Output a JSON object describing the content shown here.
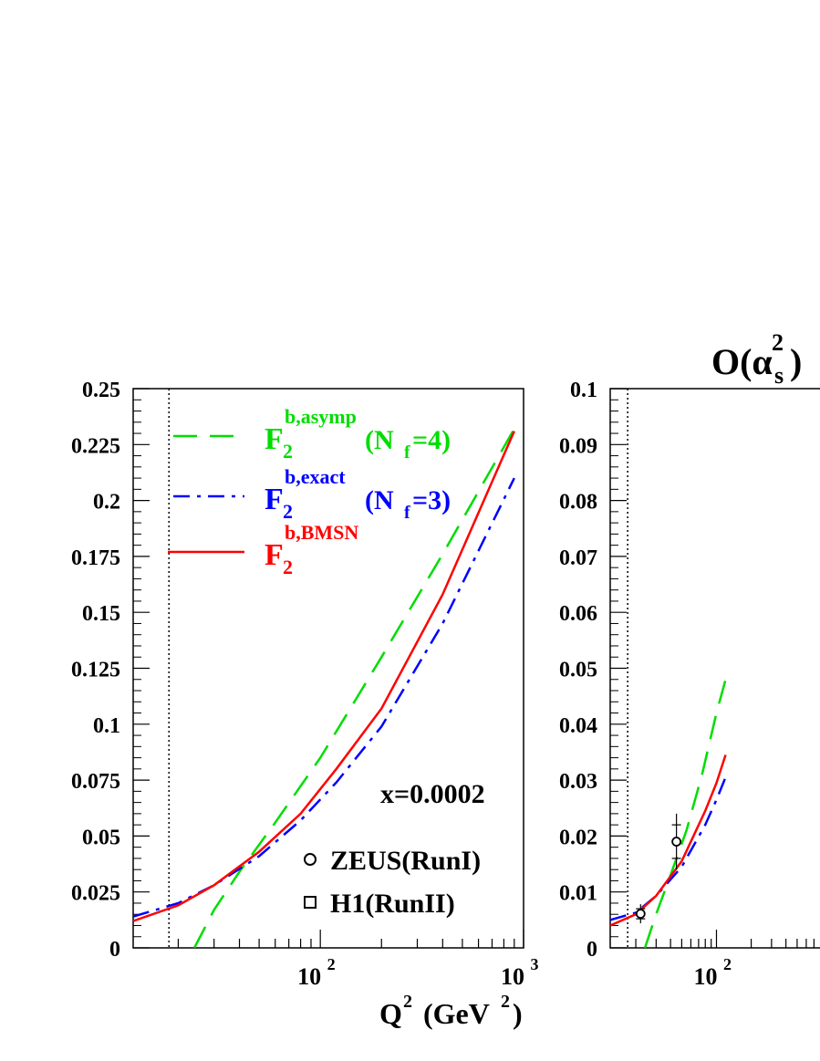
{
  "chart_data": [
    {
      "type": "line",
      "panel": "left",
      "xlabel": "Q",
      "xlabel_sup": "2",
      "xlabel_unit": "(GeV",
      "xlabel_unit_sup": "2",
      "xlabel_unit_close": ")",
      "xscale": "log",
      "xlim": [
        12,
        1000
      ],
      "ylim": [
        0,
        0.25
      ],
      "yticks": [
        "0",
        "0.025",
        "0.05",
        "0.075",
        "0.1",
        "0.125",
        "0.15",
        "0.175",
        "0.2",
        "0.225",
        "0.25"
      ],
      "xticks": [
        {
          "value": 100,
          "base": "10",
          "exp": "2"
        },
        {
          "value": 1000,
          "base": "10",
          "exp": "3"
        }
      ],
      "threshold_line_x": 18,
      "annotation": "x=0.0002",
      "legend": {
        "placement": "top-left",
        "entries": [
          {
            "key": "asymp",
            "base": "F",
            "sub": "2",
            "sup": "b,asymp",
            "tail": "(N",
            "tail_sub": "f",
            "tail_end": "=4)",
            "color": "#00dd00",
            "style": "dashed"
          },
          {
            "key": "exact",
            "base": "F",
            "sub": "2",
            "sup": "b,exact",
            "tail": "(N",
            "tail_sub": "f",
            "tail_end": "=3)",
            "color": "#0000ff",
            "style": "dashdot"
          },
          {
            "key": "bmsn",
            "base": "F",
            "sub": "2",
            "sup": "b,BMSN",
            "tail": "",
            "tail_sub": "",
            "tail_end": "",
            "color": "#ff0000",
            "style": "solid"
          }
        ]
      },
      "data_legend": [
        {
          "marker": "circle",
          "label": "ZEUS(RunI)"
        },
        {
          "marker": "square",
          "label": "H1(RunII)"
        }
      ],
      "series": [
        {
          "key": "asymp",
          "x": [
            24,
            30,
            40,
            60,
            100,
            200,
            400,
            900
          ],
          "y": [
            0.0,
            0.017,
            0.034,
            0.056,
            0.085,
            0.13,
            0.176,
            0.232
          ]
        },
        {
          "key": "exact",
          "x": [
            12,
            20,
            30,
            50,
            80,
            120,
            200,
            400,
            900
          ],
          "y": [
            0.014,
            0.02,
            0.028,
            0.041,
            0.057,
            0.074,
            0.099,
            0.145,
            0.21
          ]
        },
        {
          "key": "bmsn",
          "x": [
            12,
            20,
            30,
            50,
            80,
            120,
            200,
            400,
            900
          ],
          "y": [
            0.012,
            0.019,
            0.028,
            0.043,
            0.06,
            0.08,
            0.107,
            0.158,
            0.231
          ]
        }
      ]
    },
    {
      "type": "line",
      "panel": "right",
      "title_base": "O(α",
      "title_sub": "s",
      "title_sup": "2",
      "title_end": ")",
      "xscale": "log",
      "xlim": [
        12,
        1000
      ],
      "ylim": [
        0,
        0.1
      ],
      "yticks": [
        "0",
        "0.01",
        "0.02",
        "0.03",
        "0.04",
        "0.05",
        "0.06",
        "0.07",
        "0.08",
        "0.09",
        "0.1"
      ],
      "xticks": [
        {
          "value": 100,
          "base": "10",
          "exp": "2"
        }
      ],
      "threshold_line_x": 17,
      "series": [
        {
          "key": "asymp",
          "x": [
            24,
            30,
            40,
            55,
            75,
            100,
            120
          ],
          "y": [
            0.0,
            0.006,
            0.013,
            0.021,
            0.031,
            0.042,
            0.048
          ]
        },
        {
          "key": "exact",
          "x": [
            12,
            20,
            30,
            50,
            80,
            100,
            120
          ],
          "y": [
            0.005,
            0.0063,
            0.0093,
            0.0145,
            0.022,
            0.0265,
            0.0305
          ]
        },
        {
          "key": "bmsn",
          "x": [
            12,
            20,
            30,
            50,
            80,
            100,
            120
          ],
          "y": [
            0.004,
            0.006,
            0.0093,
            0.0155,
            0.0245,
            0.0295,
            0.0345
          ]
        }
      ],
      "points": [
        {
          "label": "ZEUS(RunI)",
          "marker": "circle",
          "x": 22,
          "y": 0.0061,
          "err_stat": 0.0009,
          "err_tot": 0.0017
        },
        {
          "label": "ZEUS(RunI)",
          "marker": "circle",
          "x": 45,
          "y": 0.019,
          "err_stat": 0.003,
          "err_tot": 0.005
        }
      ]
    }
  ]
}
